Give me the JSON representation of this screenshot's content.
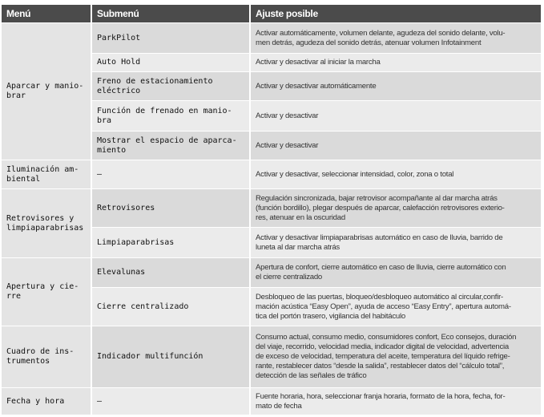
{
  "headers": [
    "Menú",
    "Submenú",
    "Ajuste posible"
  ],
  "rows": [
    {
      "menu": "Aparcar y manio-\nbrar",
      "sub": "ParkPilot",
      "adj": "Activar automáticamente, volumen delante, agudeza del sonido delante, volu-\nmen detrás, agudeza del sonido detrás, atenuar volumen Infotainment"
    },
    {
      "sub": "Auto Hold",
      "adj": "Activar y desactivar al iniciar la marcha"
    },
    {
      "sub": "Freno de estacionamiento\neléctrico",
      "adj": "Activar y desactivar automáticamente"
    },
    {
      "sub": "Función de frenado en manio-\nbra",
      "adj": "Activar y desactivar"
    },
    {
      "sub": "Mostrar el espacio de aparca-\nmiento",
      "adj": "Activar y desactivar"
    },
    {
      "menu": "Iluminación am-\nbiental",
      "sub": "–",
      "adj": "Activar y desactivar, seleccionar intensidad, color, zona o total"
    },
    {
      "menu": "Retrovisores y\nlimpiaparabrisas",
      "sub": "Retrovisores",
      "adj": "Regulación sincronizada, bajar retrovisor acompañante al dar marcha atrás\n(función bordillo), plegar después de aparcar, calefacción retrovisores exterio-\nres, atenuar en la oscuridad"
    },
    {
      "sub": "Limpiaparabrisas",
      "adj": "Activar y desactivar limpiaparabrisas automático en caso de lluvia, barrido de\nluneta al dar marcha atrás"
    },
    {
      "menu": "Apertura y cie-\nrre",
      "sub": "Elevalunas",
      "adj": "Apertura de confort, cierre automático en caso de lluvia, cierre automático con\nel cierre centralizado"
    },
    {
      "sub": "Cierre centralizado",
      "adj": "Desbloqueo de las puertas, bloqueo/desbloqueo automático al circular,confir-\nmación acústica “Easy Open”, ayuda de acceso “Easy Entry”, apertura automá-\ntica del portón trasero, vigilancia del habitáculo"
    },
    {
      "menu": "Cuadro de ins-\ntrumentos",
      "sub": "Indicador multifunción",
      "adj": "Consumo actual, consumo medio, consumidores confort, Eco consejos, duración\ndel viaje, recorrido, velocidad media, indicador digital de velocidad, advertencia\nde exceso de velocidad, temperatura del aceite, temperatura del líquido refrige-\nrante, restablecer datos “desde la salida”, restablecer datos del “cálculo total”,\ndetección de las señales de tráfico"
    },
    {
      "menu": "Fecha y hora",
      "sub": "–",
      "adj": "Fuente horaria, hora, seleccionar franja horaria, formato de la hora, fecha, for-\nmato de fecha"
    }
  ]
}
